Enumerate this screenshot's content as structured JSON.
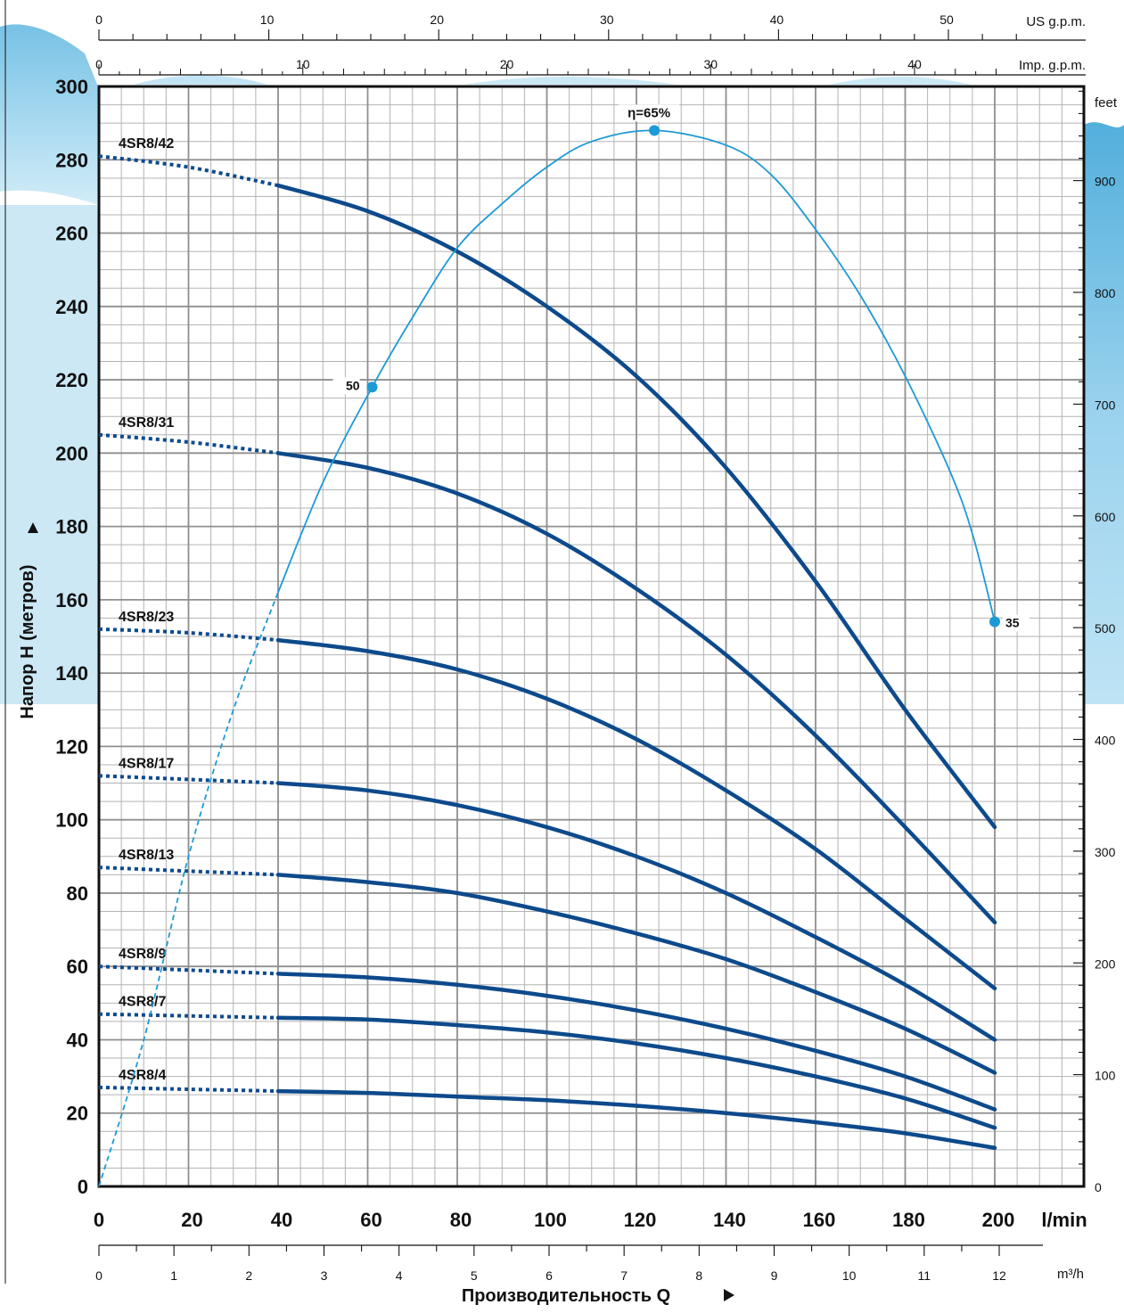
{
  "chart_data": {
    "type": "line",
    "y_axis": {
      "title": "Напор H  (метров)",
      "ticks": [
        0,
        20,
        40,
        60,
        80,
        100,
        120,
        140,
        160,
        180,
        200,
        220,
        240,
        260,
        280,
        300
      ],
      "ylim": [
        0,
        300
      ]
    },
    "x_axis": {
      "unit": "l/min",
      "ticks": [
        0,
        20,
        40,
        60,
        80,
        100,
        120,
        140,
        160,
        180,
        200
      ],
      "xlim": [
        0,
        200
      ]
    },
    "x_axis_m3h": {
      "title": "Производительность  Q",
      "unit": "m³/h",
      "ticks": [
        0,
        1,
        2,
        3,
        4,
        5,
        6,
        7,
        8,
        9,
        10,
        11,
        12
      ]
    },
    "x_axis_usgpm": {
      "unit": "US g.p.m.",
      "ticks": [
        0,
        10,
        20,
        30,
        40,
        50
      ]
    },
    "x_axis_impgpm": {
      "unit": "Imp. g.p.m.",
      "ticks": [
        0,
        10,
        20,
        30,
        40
      ]
    },
    "y_axis_feet": {
      "unit": "feet",
      "ticks": [
        0,
        100,
        200,
        300,
        400,
        500,
        600,
        700,
        800,
        900
      ]
    },
    "grid": true,
    "series": [
      {
        "name": "4SR8/42",
        "color": "#0d4a8c",
        "dotted": [
          [
            0,
            281
          ],
          [
            20,
            278
          ],
          [
            40,
            273
          ]
        ],
        "solid": [
          [
            40,
            273
          ],
          [
            60,
            266
          ],
          [
            80,
            255
          ],
          [
            100,
            240
          ],
          [
            120,
            221
          ],
          [
            140,
            196
          ],
          [
            160,
            165
          ],
          [
            180,
            130
          ],
          [
            200,
            98
          ]
        ]
      },
      {
        "name": "4SR8/31",
        "color": "#0d4a8c",
        "dotted": [
          [
            0,
            205
          ],
          [
            20,
            203
          ],
          [
            40,
            200
          ]
        ],
        "solid": [
          [
            40,
            200
          ],
          [
            60,
            196
          ],
          [
            80,
            189
          ],
          [
            100,
            178
          ],
          [
            120,
            163
          ],
          [
            140,
            145
          ],
          [
            160,
            123
          ],
          [
            180,
            98
          ],
          [
            200,
            72
          ]
        ]
      },
      {
        "name": "4SR8/23",
        "color": "#0d4a8c",
        "dotted": [
          [
            0,
            152
          ],
          [
            20,
            151
          ],
          [
            40,
            149
          ]
        ],
        "solid": [
          [
            40,
            149
          ],
          [
            60,
            146
          ],
          [
            80,
            141
          ],
          [
            100,
            133
          ],
          [
            120,
            122
          ],
          [
            140,
            108
          ],
          [
            160,
            92
          ],
          [
            180,
            73
          ],
          [
            200,
            54
          ]
        ]
      },
      {
        "name": "4SR8/17",
        "color": "#0d4a8c",
        "dotted": [
          [
            0,
            112
          ],
          [
            20,
            111
          ],
          [
            40,
            110
          ]
        ],
        "solid": [
          [
            40,
            110
          ],
          [
            60,
            108
          ],
          [
            80,
            104
          ],
          [
            100,
            98
          ],
          [
            120,
            90
          ],
          [
            140,
            80
          ],
          [
            160,
            68
          ],
          [
            180,
            55
          ],
          [
            200,
            40
          ]
        ]
      },
      {
        "name": "4SR8/13",
        "color": "#0d4a8c",
        "dotted": [
          [
            0,
            87
          ],
          [
            20,
            86
          ],
          [
            40,
            85
          ]
        ],
        "solid": [
          [
            40,
            85
          ],
          [
            60,
            83
          ],
          [
            80,
            80
          ],
          [
            100,
            75
          ],
          [
            120,
            69
          ],
          [
            140,
            62
          ],
          [
            160,
            53
          ],
          [
            180,
            43
          ],
          [
            200,
            31
          ]
        ]
      },
      {
        "name": "4SR8/9",
        "color": "#0d4a8c",
        "dotted": [
          [
            0,
            60
          ],
          [
            20,
            59
          ],
          [
            40,
            58
          ]
        ],
        "solid": [
          [
            40,
            58
          ],
          [
            60,
            57
          ],
          [
            80,
            55
          ],
          [
            100,
            52
          ],
          [
            120,
            48
          ],
          [
            140,
            43
          ],
          [
            160,
            37
          ],
          [
            180,
            30
          ],
          [
            200,
            21
          ]
        ]
      },
      {
        "name": "4SR8/7",
        "color": "#0d4a8c",
        "dotted": [
          [
            0,
            47
          ],
          [
            20,
            46.5
          ],
          [
            40,
            46
          ]
        ],
        "solid": [
          [
            40,
            46
          ],
          [
            60,
            45.5
          ],
          [
            80,
            44
          ],
          [
            100,
            42
          ],
          [
            120,
            39
          ],
          [
            140,
            35
          ],
          [
            160,
            30
          ],
          [
            180,
            24
          ],
          [
            200,
            16
          ]
        ]
      },
      {
        "name": "4SR8/4",
        "color": "#0d4a8c",
        "dotted": [
          [
            0,
            27
          ],
          [
            20,
            26.5
          ],
          [
            40,
            26
          ]
        ],
        "solid": [
          [
            40,
            26
          ],
          [
            60,
            25.5
          ],
          [
            80,
            24.5
          ],
          [
            100,
            23.5
          ],
          [
            120,
            22
          ],
          [
            140,
            20
          ],
          [
            160,
            17.5
          ],
          [
            180,
            14.5
          ],
          [
            200,
            10.5
          ]
        ]
      }
    ],
    "efficiency": {
      "color": "#1d9ad6",
      "dashed": [
        [
          0,
          0
        ],
        [
          10,
          40
        ],
        [
          20,
          90
        ],
        [
          30,
          130
        ],
        [
          40,
          162
        ]
      ],
      "solid": [
        [
          40,
          162
        ],
        [
          50,
          192
        ],
        [
          61,
          218
        ],
        [
          70,
          237
        ],
        [
          80,
          256
        ],
        [
          90,
          268
        ],
        [
          100,
          278
        ],
        [
          110,
          285
        ],
        [
          124,
          288
        ],
        [
          140,
          284
        ],
        [
          150,
          276
        ],
        [
          160,
          261
        ],
        [
          170,
          243
        ],
        [
          180,
          221
        ],
        [
          190,
          195
        ],
        [
          195,
          178
        ],
        [
          200,
          154
        ]
      ],
      "points": [
        {
          "x": 61,
          "y": 218,
          "label": "50"
        },
        {
          "x": 124,
          "y": 288,
          "label": "η=65%"
        },
        {
          "x": 200,
          "y": 154,
          "label": "35"
        }
      ]
    }
  }
}
